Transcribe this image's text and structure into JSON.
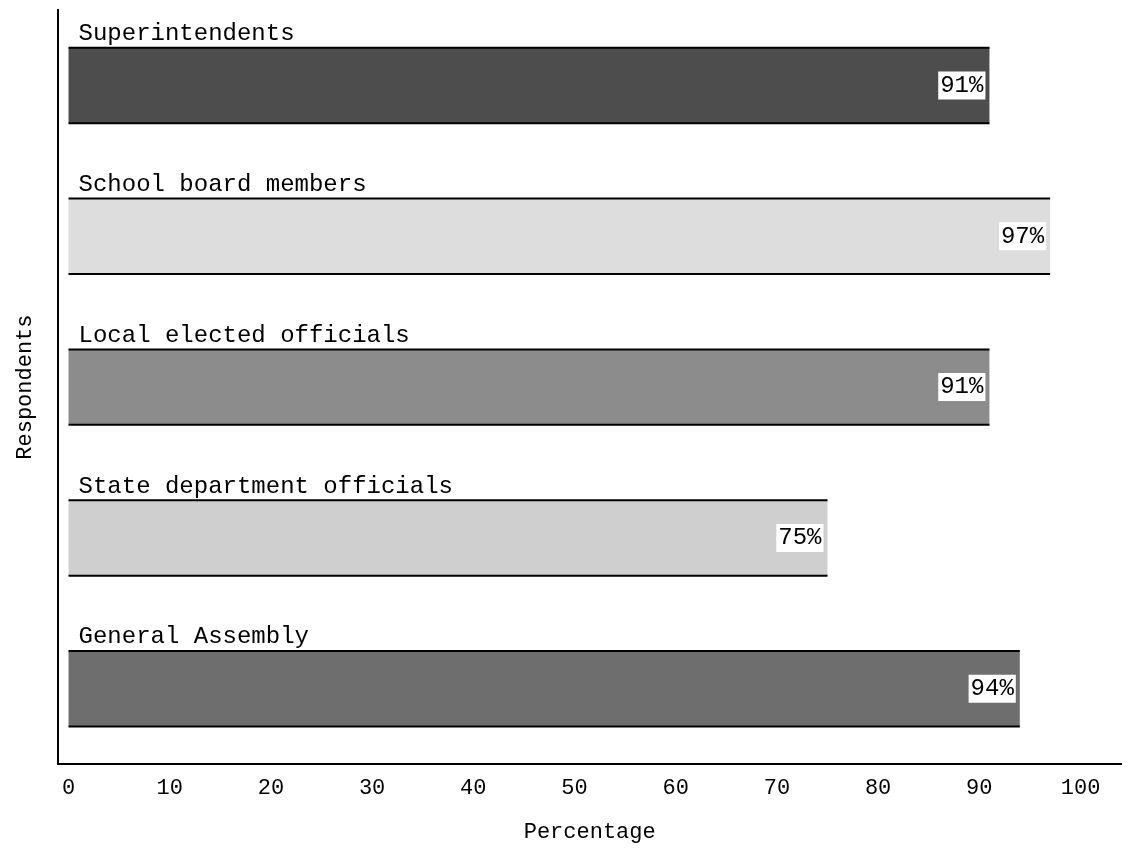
{
  "chart_data": {
    "type": "bar",
    "orientation": "horizontal",
    "xlabel": "Percentage",
    "ylabel": "Respondents",
    "categories": [
      "Superintendents",
      "School board members",
      "Local elected officials",
      "State department officials",
      "General Assembly"
    ],
    "values": [
      91,
      97,
      91,
      75,
      94
    ],
    "value_labels": [
      "91%",
      "97%",
      "91%",
      "75%",
      "94%"
    ],
    "colors": [
      "#4d4d4d",
      "#dddddd",
      "#8c8c8c",
      "#cfcfcf",
      "#6e6e6e"
    ],
    "xlim": [
      -1,
      104
    ],
    "xticks": [
      0,
      10,
      20,
      30,
      40,
      50,
      60,
      70,
      80,
      90,
      100
    ],
    "grid": false,
    "legend": false
  }
}
